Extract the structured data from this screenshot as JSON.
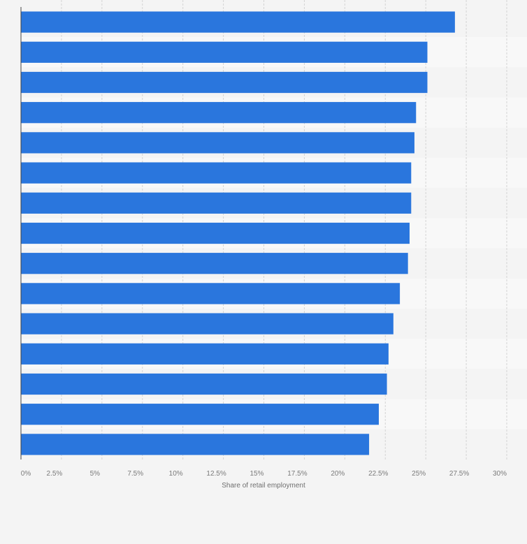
{
  "chart_data": {
    "type": "bar",
    "orientation": "horizontal",
    "title": "",
    "xlabel": "Share of retail employment",
    "ylabel": "",
    "xlim": [
      0,
      30
    ],
    "x_ticks": [
      0,
      2.5,
      5,
      7.5,
      10,
      12.5,
      15,
      17.5,
      20,
      22.5,
      25,
      27.5,
      30
    ],
    "x_tick_labels": [
      "0%",
      "2.5%",
      "5%",
      "7.5%",
      "10%",
      "12.5%",
      "15%",
      "17.5%",
      "20%",
      "22.5%",
      "25%",
      "27.5%",
      "30%"
    ],
    "grid": true,
    "categories": [
      "",
      "",
      "",
      "",
      "",
      "",
      "",
      "",
      "",
      "",
      "",
      "",
      "",
      "",
      ""
    ],
    "values": [
      26.8,
      25.1,
      25.1,
      24.4,
      24.3,
      24.1,
      24.1,
      24.0,
      23.9,
      23.4,
      23.0,
      22.7,
      22.6,
      22.1,
      21.5
    ],
    "bar_color": "#2a76dd",
    "band_color_a": "#f4f4f4",
    "band_color_b": "#f8f8f8",
    "grid_color": "#d4d4d4",
    "axis_color": "#444444"
  }
}
